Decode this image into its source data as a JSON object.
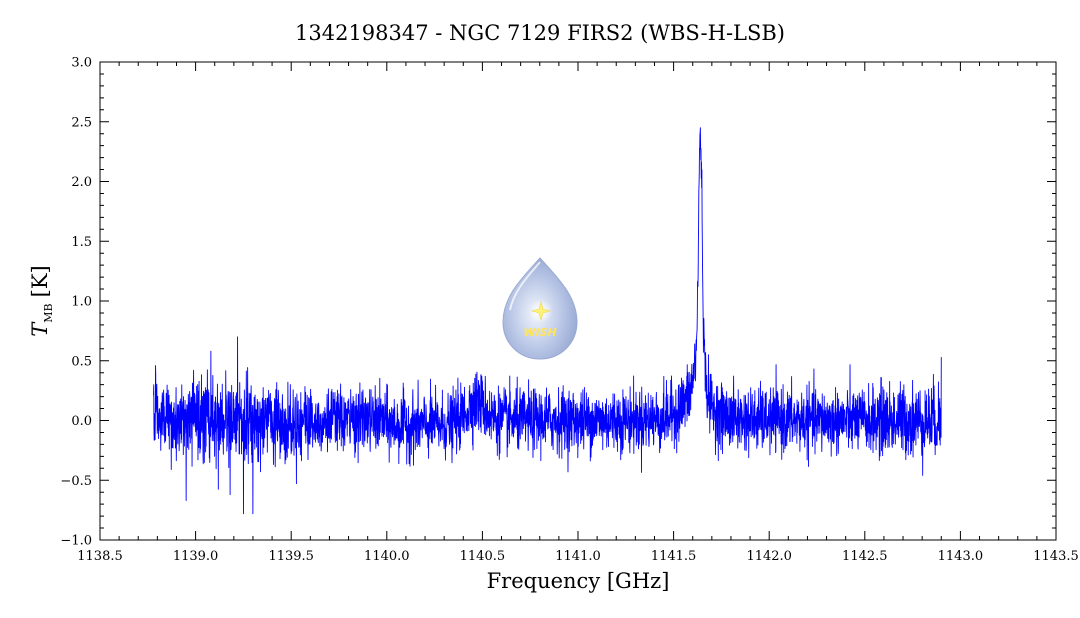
{
  "chart_data": {
    "type": "line",
    "title": "1342198347 - NGC 7129 FIRS2 (WBS-H-LSB)",
    "xlabel": "Frequency [GHz]",
    "ylabel_symbol": "T",
    "ylabel_subscript": "MB",
    "ylabel_unit": "[K]",
    "xlim": [
      1138.5,
      1143.5
    ],
    "ylim": [
      -1.0,
      3.0
    ],
    "x_ticks": [
      "1138.5",
      "1139.0",
      "1139.5",
      "1140.0",
      "1140.5",
      "1141.0",
      "1141.5",
      "1142.0",
      "1142.5",
      "1143.0",
      "1143.5"
    ],
    "y_ticks": [
      "−1.0",
      "−0.5",
      "0.0",
      "0.5",
      "1.0",
      "1.5",
      "2.0",
      "2.5",
      "3.0"
    ],
    "grid": false,
    "series": [
      {
        "color": "#0000ff",
        "x_range": [
          1138.78,
          1142.9
        ],
        "noise_rms_k": 0.13,
        "noise_spikes_k": [
          -0.78,
          0.7
        ],
        "emission_features": [
          {
            "center_ghz": 1141.64,
            "peak_k": 2.45
          },
          {
            "center_ghz": 1140.47,
            "peak_k": 0.35
          }
        ]
      }
    ]
  },
  "logo": {
    "text": "WISH",
    "icon": "water-drop-star-icon"
  }
}
